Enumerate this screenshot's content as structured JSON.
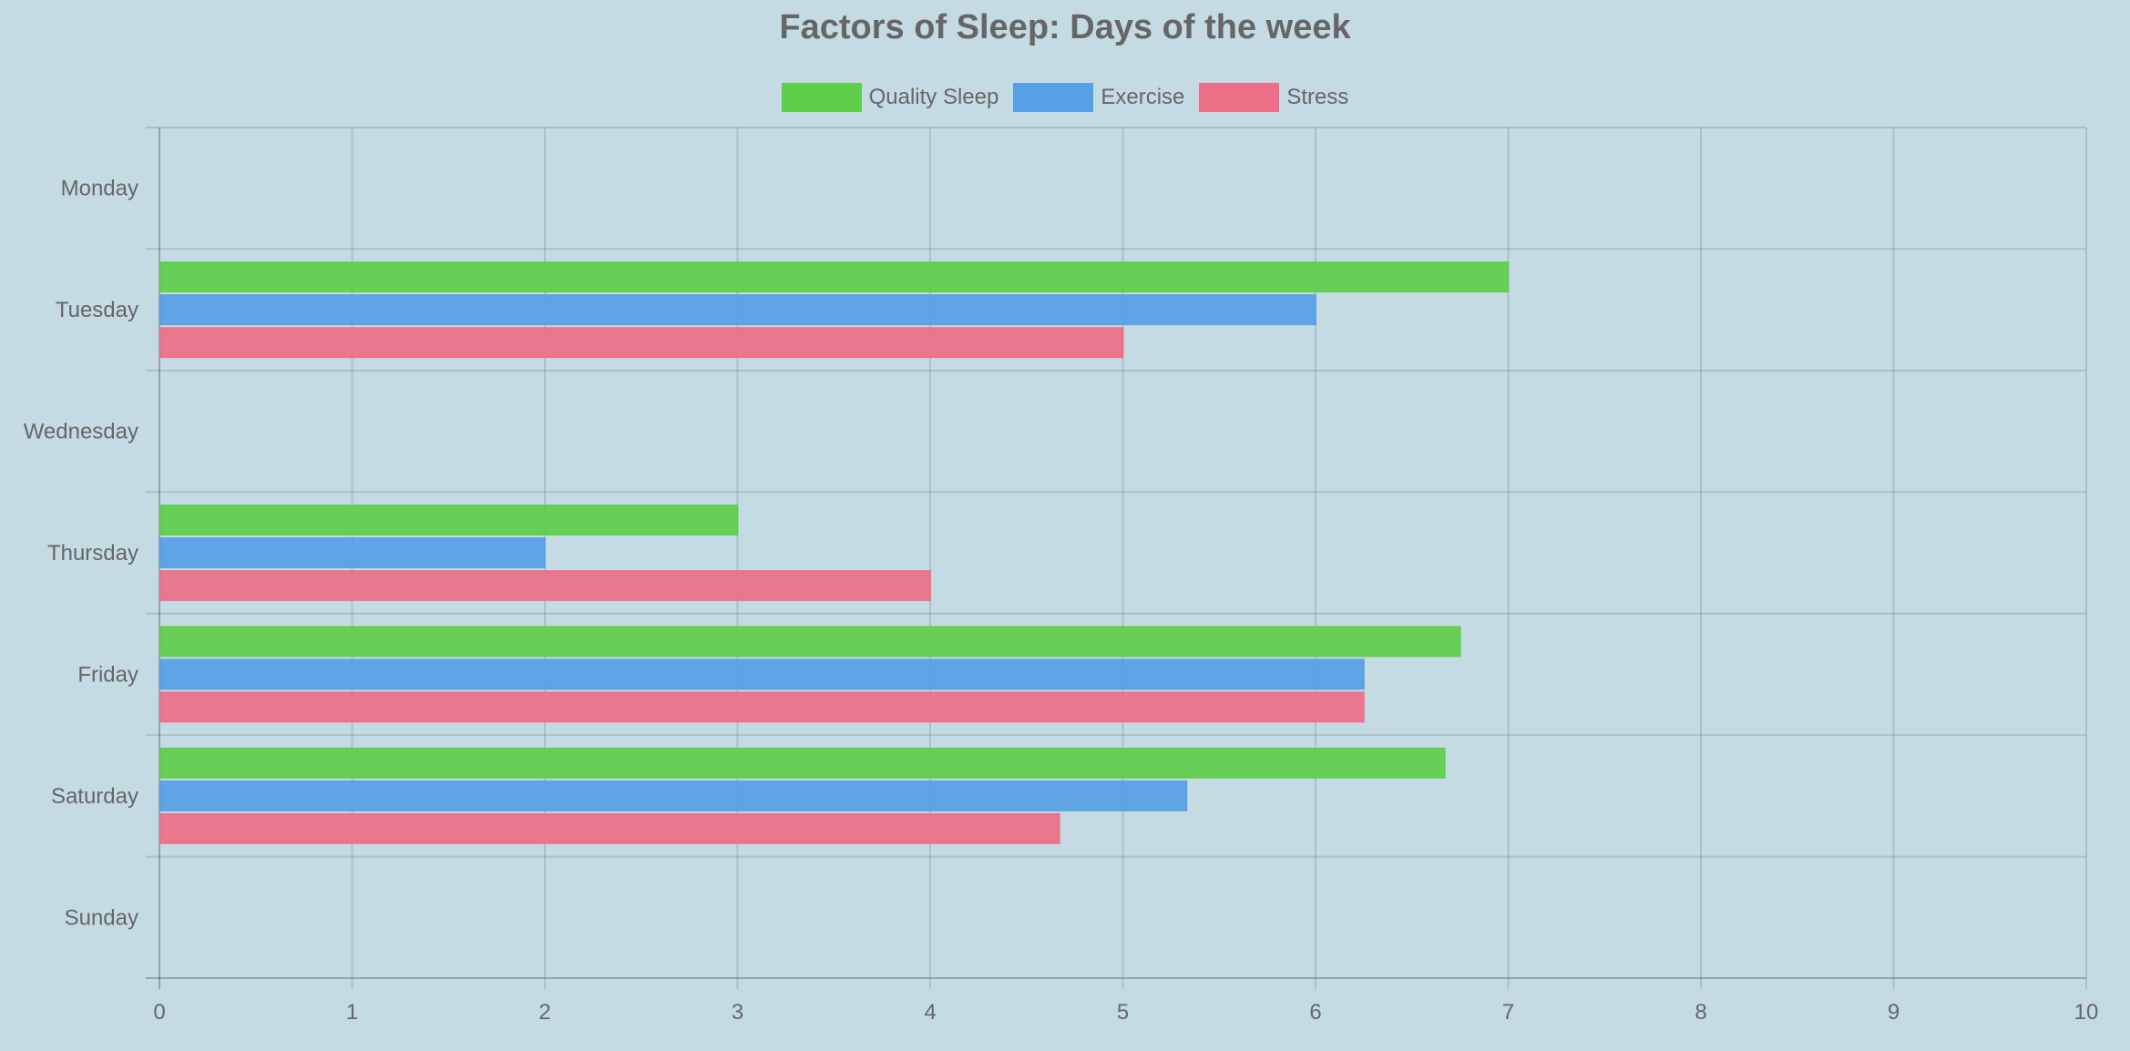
{
  "chart_data": {
    "type": "bar",
    "orientation": "horizontal",
    "title": "Factors of Sleep: Days of the week",
    "categories": [
      "Monday",
      "Tuesday",
      "Wednesday",
      "Thursday",
      "Friday",
      "Saturday",
      "Sunday"
    ],
    "series": [
      {
        "name": "Quality Sleep",
        "color": "#5ece4a",
        "values": [
          null,
          7,
          null,
          3,
          6.75,
          6.67,
          null
        ]
      },
      {
        "name": "Exercise",
        "color": "#57a0e5",
        "values": [
          null,
          6,
          null,
          2,
          6.25,
          5.33,
          null
        ]
      },
      {
        "name": "Stress",
        "color": "#ec6f87",
        "values": [
          null,
          5,
          null,
          4,
          6.25,
          4.67,
          null
        ]
      }
    ],
    "xlim": [
      0,
      10
    ],
    "x_ticks": [
      "0",
      "1",
      "2",
      "3",
      "4",
      "5",
      "6",
      "7",
      "8",
      "9",
      "10"
    ],
    "xlabel": "",
    "ylabel": "",
    "grid": true,
    "legend_position": "top-center"
  }
}
